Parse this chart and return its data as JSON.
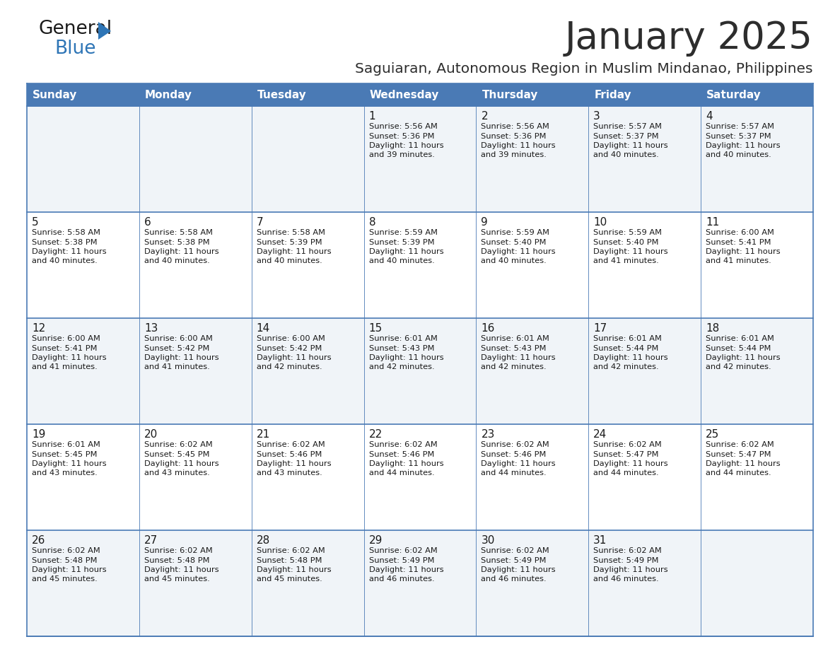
{
  "title": "January 2025",
  "subtitle": "Saguiaran, Autonomous Region in Muslim Mindanao, Philippines",
  "title_color": "#2d2d2d",
  "subtitle_color": "#2d2d2d",
  "header_bg_color": "#4a7ab5",
  "header_text_color": "#ffffff",
  "row_bg_even": "#f0f4f8",
  "row_bg_odd": "#ffffff",
  "cell_border_color": "#4a7ab5",
  "day_number_color": "#1a1a1a",
  "info_text_color": "#1a1a1a",
  "logo_general_color": "#1a1a1a",
  "logo_blue_color": "#2e75b6",
  "logo_triangle_color": "#2e75b6",
  "days_of_week": [
    "Sunday",
    "Monday",
    "Tuesday",
    "Wednesday",
    "Thursday",
    "Friday",
    "Saturday"
  ],
  "calendar": [
    [
      {
        "day": "",
        "sunrise": "",
        "sunset": "",
        "daylight_h": "",
        "daylight_m": ""
      },
      {
        "day": "",
        "sunrise": "",
        "sunset": "",
        "daylight_h": "",
        "daylight_m": ""
      },
      {
        "day": "",
        "sunrise": "",
        "sunset": "",
        "daylight_h": "",
        "daylight_m": ""
      },
      {
        "day": "1",
        "sunrise": "5:56 AM",
        "sunset": "5:36 PM",
        "daylight_h": "11",
        "daylight_m": "39"
      },
      {
        "day": "2",
        "sunrise": "5:56 AM",
        "sunset": "5:36 PM",
        "daylight_h": "11",
        "daylight_m": "39"
      },
      {
        "day": "3",
        "sunrise": "5:57 AM",
        "sunset": "5:37 PM",
        "daylight_h": "11",
        "daylight_m": "40"
      },
      {
        "day": "4",
        "sunrise": "5:57 AM",
        "sunset": "5:37 PM",
        "daylight_h": "11",
        "daylight_m": "40"
      }
    ],
    [
      {
        "day": "5",
        "sunrise": "5:58 AM",
        "sunset": "5:38 PM",
        "daylight_h": "11",
        "daylight_m": "40"
      },
      {
        "day": "6",
        "sunrise": "5:58 AM",
        "sunset": "5:38 PM",
        "daylight_h": "11",
        "daylight_m": "40"
      },
      {
        "day": "7",
        "sunrise": "5:58 AM",
        "sunset": "5:39 PM",
        "daylight_h": "11",
        "daylight_m": "40"
      },
      {
        "day": "8",
        "sunrise": "5:59 AM",
        "sunset": "5:39 PM",
        "daylight_h": "11",
        "daylight_m": "40"
      },
      {
        "day": "9",
        "sunrise": "5:59 AM",
        "sunset": "5:40 PM",
        "daylight_h": "11",
        "daylight_m": "40"
      },
      {
        "day": "10",
        "sunrise": "5:59 AM",
        "sunset": "5:40 PM",
        "daylight_h": "11",
        "daylight_m": "41"
      },
      {
        "day": "11",
        "sunrise": "6:00 AM",
        "sunset": "5:41 PM",
        "daylight_h": "11",
        "daylight_m": "41"
      }
    ],
    [
      {
        "day": "12",
        "sunrise": "6:00 AM",
        "sunset": "5:41 PM",
        "daylight_h": "11",
        "daylight_m": "41"
      },
      {
        "day": "13",
        "sunrise": "6:00 AM",
        "sunset": "5:42 PM",
        "daylight_h": "11",
        "daylight_m": "41"
      },
      {
        "day": "14",
        "sunrise": "6:00 AM",
        "sunset": "5:42 PM",
        "daylight_h": "11",
        "daylight_m": "42"
      },
      {
        "day": "15",
        "sunrise": "6:01 AM",
        "sunset": "5:43 PM",
        "daylight_h": "11",
        "daylight_m": "42"
      },
      {
        "day": "16",
        "sunrise": "6:01 AM",
        "sunset": "5:43 PM",
        "daylight_h": "11",
        "daylight_m": "42"
      },
      {
        "day": "17",
        "sunrise": "6:01 AM",
        "sunset": "5:44 PM",
        "daylight_h": "11",
        "daylight_m": "42"
      },
      {
        "day": "18",
        "sunrise": "6:01 AM",
        "sunset": "5:44 PM",
        "daylight_h": "11",
        "daylight_m": "42"
      }
    ],
    [
      {
        "day": "19",
        "sunrise": "6:01 AM",
        "sunset": "5:45 PM",
        "daylight_h": "11",
        "daylight_m": "43"
      },
      {
        "day": "20",
        "sunrise": "6:02 AM",
        "sunset": "5:45 PM",
        "daylight_h": "11",
        "daylight_m": "43"
      },
      {
        "day": "21",
        "sunrise": "6:02 AM",
        "sunset": "5:46 PM",
        "daylight_h": "11",
        "daylight_m": "43"
      },
      {
        "day": "22",
        "sunrise": "6:02 AM",
        "sunset": "5:46 PM",
        "daylight_h": "11",
        "daylight_m": "44"
      },
      {
        "day": "23",
        "sunrise": "6:02 AM",
        "sunset": "5:46 PM",
        "daylight_h": "11",
        "daylight_m": "44"
      },
      {
        "day": "24",
        "sunrise": "6:02 AM",
        "sunset": "5:47 PM",
        "daylight_h": "11",
        "daylight_m": "44"
      },
      {
        "day": "25",
        "sunrise": "6:02 AM",
        "sunset": "5:47 PM",
        "daylight_h": "11",
        "daylight_m": "44"
      }
    ],
    [
      {
        "day": "26",
        "sunrise": "6:02 AM",
        "sunset": "5:48 PM",
        "daylight_h": "11",
        "daylight_m": "45"
      },
      {
        "day": "27",
        "sunrise": "6:02 AM",
        "sunset": "5:48 PM",
        "daylight_h": "11",
        "daylight_m": "45"
      },
      {
        "day": "28",
        "sunrise": "6:02 AM",
        "sunset": "5:48 PM",
        "daylight_h": "11",
        "daylight_m": "45"
      },
      {
        "day": "29",
        "sunrise": "6:02 AM",
        "sunset": "5:49 PM",
        "daylight_h": "11",
        "daylight_m": "46"
      },
      {
        "day": "30",
        "sunrise": "6:02 AM",
        "sunset": "5:49 PM",
        "daylight_h": "11",
        "daylight_m": "46"
      },
      {
        "day": "31",
        "sunrise": "6:02 AM",
        "sunset": "5:49 PM",
        "daylight_h": "11",
        "daylight_m": "46"
      },
      {
        "day": "",
        "sunrise": "",
        "sunset": "",
        "daylight_h": "",
        "daylight_m": ""
      }
    ]
  ]
}
